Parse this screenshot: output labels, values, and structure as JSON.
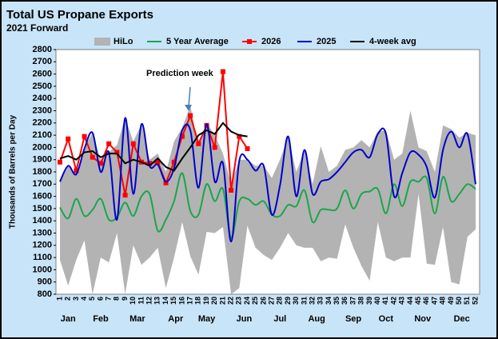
{
  "chart_data": {
    "type": "line",
    "title": "Total US Propane Exports",
    "subtitle": "2021 Forward",
    "y_label": "Thousands of Barrels per Day",
    "annotation": "Prediction week",
    "categories": [
      1,
      2,
      3,
      4,
      5,
      6,
      7,
      8,
      9,
      10,
      11,
      12,
      13,
      14,
      15,
      16,
      17,
      18,
      19,
      20,
      21,
      22,
      23,
      24,
      25,
      26,
      27,
      28,
      29,
      30,
      31,
      32,
      33,
      34,
      35,
      36,
      37,
      38,
      39,
      40,
      41,
      42,
      43,
      44,
      45,
      46,
      47,
      48,
      49,
      50,
      51,
      52
    ],
    "months": [
      "Jan",
      "Feb",
      "Mar",
      "Apr",
      "May",
      "Jun",
      "Jul",
      "Aug",
      "Sep",
      "Oct",
      "Nov",
      "Dec"
    ],
    "ylim": [
      800,
      2800
    ],
    "yticks": [
      800,
      900,
      1000,
      1100,
      1200,
      1300,
      1400,
      1500,
      1600,
      1700,
      1800,
      1900,
      2000,
      2100,
      2200,
      2300,
      2400,
      2500,
      2600,
      2700,
      2800
    ],
    "grid": false,
    "series": [
      {
        "name": "HiLo",
        "color": "#b3b3b3",
        "kind": "band",
        "high": [
          1720,
          1850,
          1780,
          2000,
          2120,
          1900,
          1960,
          2020,
          2240,
          2050,
          2190,
          1900,
          1950,
          1800,
          2050,
          2160,
          2340,
          2000,
          2200,
          2100,
          1950,
          1700,
          1900,
          1900,
          1850,
          1850,
          1750,
          1900,
          2090,
          1800,
          1980,
          1700,
          2010,
          1800,
          1850,
          1980,
          2000,
          2060,
          2000,
          2130,
          2140,
          1900,
          1950,
          2300,
          2000,
          1970,
          1800,
          2180,
          2150,
          2080,
          2120,
          2100
        ],
        "low": [
          1080,
          870,
          1080,
          1240,
          800,
          1100,
          1060,
          1300,
          800,
          1200,
          1040,
          1100,
          1180,
          850,
          1100,
          1390,
          1110,
          960,
          1310,
          1300,
          1350,
          800,
          850,
          1360,
          1180,
          1120,
          1080,
          1180,
          1300,
          1200,
          1180,
          1180,
          1070,
          1100,
          1090,
          1370,
          1180,
          1030,
          910,
          1390,
          1100,
          1070,
          1100,
          1100,
          1620,
          1050,
          1040,
          1350,
          900,
          880,
          1270,
          1330
        ]
      },
      {
        "name": "5 Year Average",
        "color": "#1aa64a",
        "kind": "smooth",
        "values": [
          1510,
          1420,
          1580,
          1440,
          1490,
          1580,
          1410,
          1430,
          1550,
          1440,
          1600,
          1620,
          1320,
          1410,
          1560,
          1790,
          1480,
          1450,
          1700,
          1560,
          1660,
          1260,
          1560,
          1580,
          1530,
          1560,
          1450,
          1440,
          1530,
          1520,
          1650,
          1390,
          1490,
          1490,
          1500,
          1650,
          1500,
          1620,
          1640,
          1660,
          1460,
          1700,
          1520,
          1720,
          1720,
          1750,
          1460,
          1760,
          1560,
          1620,
          1700,
          1660
        ]
      },
      {
        "name": "2026",
        "color": "#ff0000",
        "kind": "line",
        "marker": "square",
        "values": [
          1880,
          2070,
          1810,
          2090,
          1920,
          1870,
          2030,
          1960,
          1610,
          2030,
          1880,
          1870,
          1880,
          1710,
          1880,
          2090,
          2260,
          2030,
          2180,
          2000,
          2620,
          1650,
          2090,
          1990,
          null,
          null,
          null,
          null,
          null,
          null,
          null,
          null,
          null,
          null,
          null,
          null,
          null,
          null,
          null,
          null,
          null,
          null,
          null,
          null,
          null,
          null,
          null,
          null,
          null,
          null,
          null,
          null
        ]
      },
      {
        "name": "2025",
        "color": "#0000cc",
        "kind": "smooth",
        "values": [
          1720,
          1850,
          1780,
          1990,
          2120,
          1800,
          1960,
          1410,
          2240,
          1620,
          2190,
          1850,
          1860,
          1720,
          1830,
          2140,
          2140,
          1670,
          2190,
          1720,
          1870,
          1230,
          1890,
          1900,
          1810,
          1850,
          1450,
          1690,
          2090,
          1600,
          1980,
          1620,
          1720,
          1740,
          1800,
          1880,
          1960,
          1980,
          1920,
          2110,
          2110,
          1600,
          1790,
          1960,
          1940,
          1840,
          1590,
          1980,
          2130,
          2000,
          2110,
          1700
        ]
      },
      {
        "name": "4-week avg",
        "color": "#000000",
        "kind": "line",
        "values": [
          1910,
          1930,
          1900,
          1960,
          1970,
          1920,
          1950,
          1950,
          1870,
          1900,
          1880,
          1850,
          1910,
          1840,
          1810,
          1910,
          2000,
          2100,
          2140,
          2110,
          2200,
          2130,
          2100,
          2090,
          null,
          null,
          null,
          null,
          null,
          null,
          null,
          null,
          null,
          null,
          null,
          null,
          null,
          null,
          null,
          null,
          null,
          null,
          null,
          null,
          null,
          null,
          null,
          null,
          null,
          null,
          null,
          null
        ]
      }
    ]
  }
}
